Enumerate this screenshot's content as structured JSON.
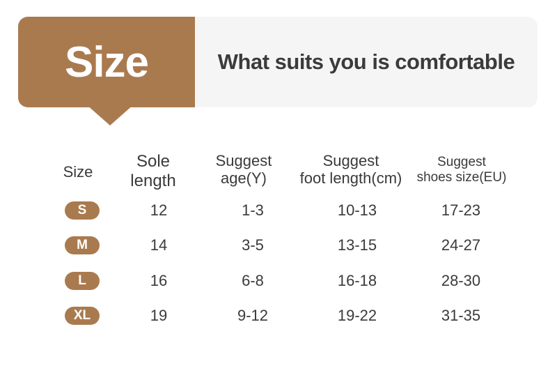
{
  "banner": {
    "title": "Size",
    "tagline": "What suits you is comfortable",
    "accent_color": "#aa7a4f",
    "panel_color": "#f5f5f5"
  },
  "table": {
    "headers": {
      "size": "Size",
      "sole_line1": "Sole",
      "sole_line2": "length",
      "age_line1": "Suggest",
      "age_line2": "age(Y)",
      "foot_line1": "Suggest",
      "foot_line2": "foot length(cm)",
      "shoes_line1": "Suggest",
      "shoes_line2": "shoes size(EU)"
    },
    "rows": [
      {
        "size": "S",
        "sole_length": "12",
        "age": "1-3",
        "foot_length": "10-13",
        "shoe_size": "17-23"
      },
      {
        "size": "M",
        "sole_length": "14",
        "age": "3-5",
        "foot_length": "13-15",
        "shoe_size": "24-27"
      },
      {
        "size": "L",
        "sole_length": "16",
        "age": "6-8",
        "foot_length": "16-18",
        "shoe_size": "28-30"
      },
      {
        "size": "XL",
        "sole_length": "19",
        "age": "9-12",
        "foot_length": "19-22",
        "shoe_size": "31-35"
      }
    ]
  }
}
